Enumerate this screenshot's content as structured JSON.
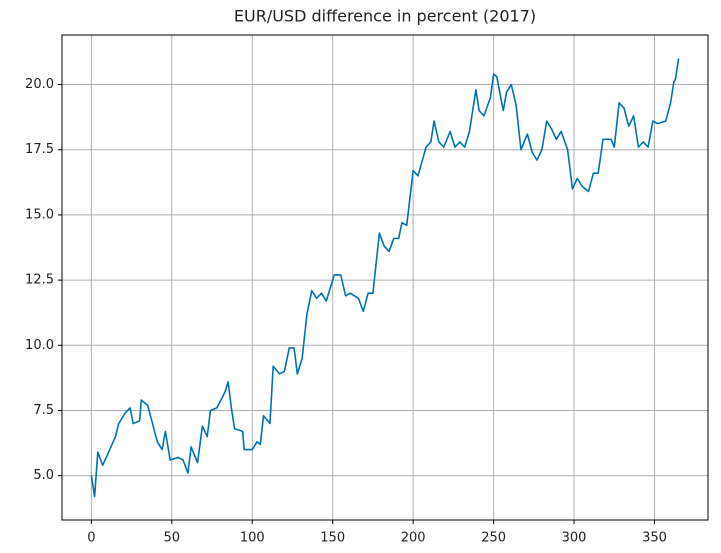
{
  "chart_data": {
    "type": "line",
    "title": "EUR/USD difference in percent (2017)",
    "x": [
      0,
      2,
      4,
      7,
      10,
      15,
      17,
      21,
      24,
      26,
      30,
      31,
      35,
      38,
      41,
      44,
      46,
      49,
      54,
      57,
      60,
      62,
      66,
      69,
      72,
      74,
      78,
      83,
      85,
      87,
      89,
      94,
      95,
      100,
      103,
      105,
      107,
      111,
      113,
      117,
      120,
      123,
      126,
      128,
      131,
      134,
      137,
      140,
      143,
      146,
      151,
      155,
      158,
      161,
      166,
      169,
      172,
      175,
      179,
      182,
      185,
      188,
      191,
      193,
      196,
      200,
      203,
      208,
      211,
      213,
      216,
      219,
      223,
      226,
      229,
      232,
      235,
      239,
      241,
      244,
      248,
      250,
      252,
      256,
      258,
      261,
      264,
      267,
      271,
      274,
      277,
      280,
      283,
      286,
      289,
      292,
      296,
      299,
      302,
      305,
      309,
      312,
      315,
      318,
      323,
      325,
      328,
      331,
      334,
      337,
      340,
      343,
      346,
      349,
      352,
      357,
      360,
      362,
      363,
      365
    ],
    "series": [
      {
        "name": "EUR/USD",
        "color": "#0072b2",
        "values": [
          5.0,
          4.2,
          5.9,
          5.4,
          5.8,
          6.5,
          7.0,
          7.4,
          7.6,
          7.0,
          7.1,
          7.9,
          7.7,
          7.0,
          6.3,
          6.0,
          6.7,
          5.6,
          5.7,
          5.6,
          5.1,
          6.1,
          5.5,
          6.9,
          6.5,
          7.5,
          7.6,
          8.2,
          8.6,
          7.6,
          6.8,
          6.7,
          6.0,
          6.0,
          6.3,
          6.2,
          7.3,
          7.0,
          9.2,
          8.9,
          9.0,
          9.9,
          9.9,
          8.9,
          9.5,
          11.2,
          12.1,
          11.8,
          12.0,
          11.7,
          12.7,
          12.7,
          11.9,
          12.0,
          11.8,
          11.3,
          12.0,
          12.0,
          14.3,
          13.8,
          13.6,
          14.1,
          14.1,
          14.7,
          14.6,
          16.7,
          16.5,
          17.6,
          17.8,
          18.6,
          17.8,
          17.6,
          18.2,
          17.6,
          17.8,
          17.6,
          18.2,
          19.8,
          19.0,
          18.8,
          19.5,
          20.4,
          20.3,
          19.0,
          19.7,
          20.0,
          19.2,
          17.5,
          18.1,
          17.4,
          17.1,
          17.5,
          18.6,
          18.3,
          17.9,
          18.2,
          17.5,
          16.0,
          16.4,
          16.1,
          15.9,
          16.6,
          16.6,
          17.9,
          17.9,
          17.6,
          19.3,
          19.1,
          18.4,
          18.8,
          17.6,
          17.8,
          17.6,
          18.6,
          18.5,
          18.6,
          19.3,
          20.1,
          20.2,
          21.0
        ]
      }
    ],
    "xlim": [
      -18.25,
      383.25
    ],
    "ylim": [
      3.3,
      21.9
    ],
    "xticks": [
      0,
      50,
      100,
      150,
      200,
      250,
      300,
      350
    ],
    "yticks": [
      {
        "value": 5,
        "label": "5.0"
      },
      7.5,
      {
        "value": 10,
        "label": "10.0"
      },
      12.5,
      {
        "value": 15,
        "label": "15.0"
      },
      17.5,
      {
        "value": 20,
        "label": "20.0"
      }
    ],
    "grid": true
  }
}
